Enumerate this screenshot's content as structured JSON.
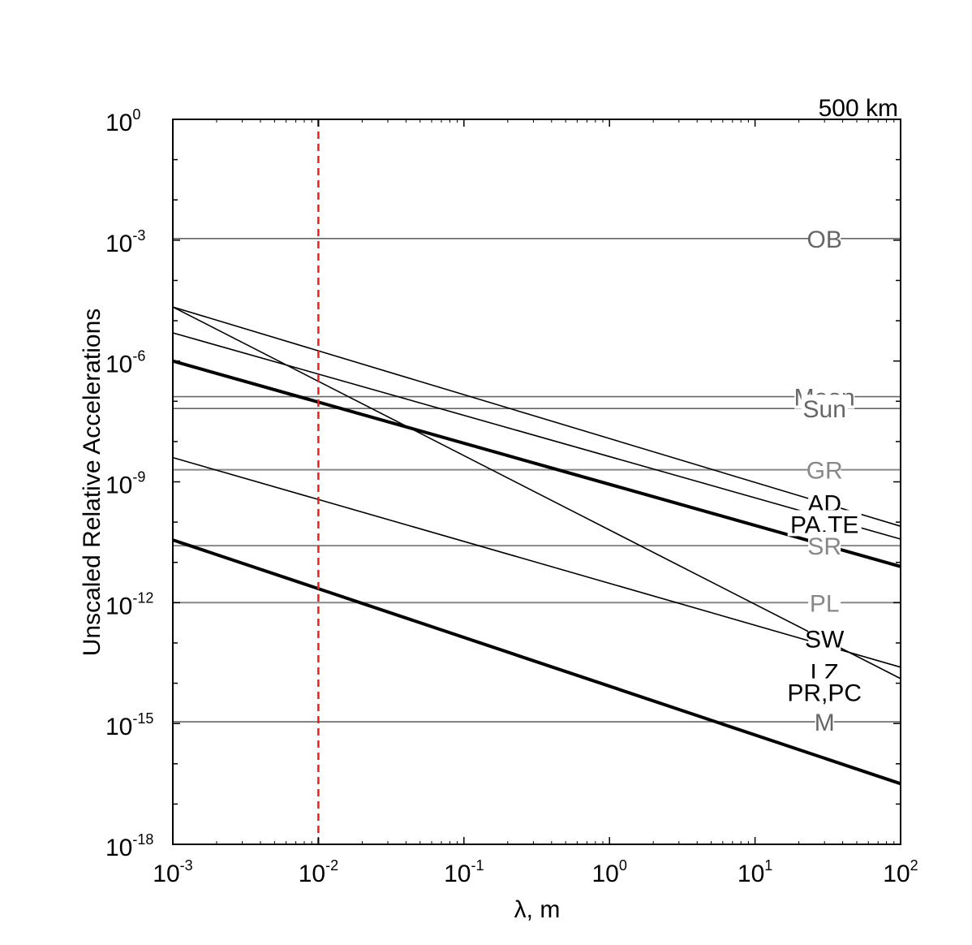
{
  "chart_data": {
    "type": "line",
    "title": "",
    "corner_label": "500 km",
    "xlabel": "λ, m",
    "ylabel": "Unscaled Relative Accelerations",
    "xscale": "log",
    "yscale": "log",
    "xlim": [
      0.001,
      100
    ],
    "ylim": [
      1e-18,
      1
    ],
    "x_ticks": [
      {
        "base": "10",
        "exp": "-3",
        "value": 0.001
      },
      {
        "base": "10",
        "exp": "-2",
        "value": 0.01
      },
      {
        "base": "10",
        "exp": "-1",
        "value": 0.1
      },
      {
        "base": "10",
        "exp": "0",
        "value": 1
      },
      {
        "base": "10",
        "exp": "1",
        "value": 10
      },
      {
        "base": "10",
        "exp": "2",
        "value": 100
      }
    ],
    "y_ticks": [
      {
        "base": "10",
        "exp": "0",
        "value": 1
      },
      {
        "base": "10",
        "exp": "-3",
        "value": 0.001
      },
      {
        "base": "10",
        "exp": "-6",
        "value": 1e-06
      },
      {
        "base": "10",
        "exp": "-9",
        "value": 1e-09
      },
      {
        "base": "10",
        "exp": "-12",
        "value": 1e-12
      },
      {
        "base": "10",
        "exp": "-15",
        "value": 1e-15
      },
      {
        "base": "10",
        "exp": "-18",
        "value": 1e-18
      }
    ],
    "grid": false,
    "legend": "inline labels",
    "marker_line": {
      "x": 0.01,
      "color": "#e8211c",
      "style": "dashed"
    },
    "series": [
      {
        "name": "OB",
        "x": [
          0.001,
          100
        ],
        "y": [
          0.0011,
          0.0011
        ],
        "color": "#666666",
        "width": 1.6,
        "label_color": "#666666"
      },
      {
        "name": "Moon",
        "x": [
          0.001,
          100
        ],
        "y": [
          1.3e-07,
          1.3e-07
        ],
        "color": "#666666",
        "width": 1.6,
        "label_color": "#666666"
      },
      {
        "name": "Sun",
        "x": [
          0.001,
          100
        ],
        "y": [
          6.6e-08,
          6.6e-08
        ],
        "color": "#666666",
        "width": 1.6,
        "label_color": "#666666"
      },
      {
        "name": "GR",
        "x": [
          0.001,
          100
        ],
        "y": [
          2e-09,
          2e-09
        ],
        "color": "#888888",
        "width": 2,
        "label_color": "#888888"
      },
      {
        "name": "SR",
        "x": [
          0.001,
          100
        ],
        "y": [
          2.6e-11,
          2.6e-11
        ],
        "color": "#888888",
        "width": 2,
        "label_color": "#888888"
      },
      {
        "name": "PL",
        "x": [
          0.001,
          100
        ],
        "y": [
          1e-12,
          1e-12
        ],
        "color": "#888888",
        "width": 2,
        "label_color": "#888888"
      },
      {
        "name": "M",
        "x": [
          0.001,
          100
        ],
        "y": [
          1.1e-15,
          1.1e-15
        ],
        "color": "#666666",
        "width": 1.6,
        "label_color": "#666666"
      },
      {
        "name": "AD",
        "x": [
          0.001,
          100
        ],
        "y": [
          2.2e-05,
          7.9e-11
        ],
        "color": "#000000",
        "width": 1.6,
        "label_color": "#000000"
      },
      {
        "name": "SP",
        "x": [
          0.001,
          100
        ],
        "y": [
          5e-06,
          3.8e-11
        ],
        "color": "#000000",
        "width": 1.6,
        "label_color": "#000000"
      },
      {
        "name": "PA,TE",
        "x": [
          0.001,
          100
        ],
        "y": [
          1e-06,
          7.9e-12
        ],
        "color": "#000000",
        "width": 4,
        "label_color": "#000000"
      },
      {
        "name": "LZ",
        "x": [
          0.001,
          100
        ],
        "y": [
          2.2e-05,
          1.3e-14
        ],
        "color": "#000000",
        "width": 1.6,
        "label_color": "#000000"
      },
      {
        "name": "SW",
        "x": [
          0.001,
          100
        ],
        "y": [
          4e-09,
          2.5e-14
        ],
        "color": "#000000",
        "width": 1.6,
        "label_color": "#000000"
      },
      {
        "name": "PR,PC",
        "x": [
          0.001,
          100
        ],
        "y": [
          3.6e-11,
          3.2e-17
        ],
        "color": "#000000",
        "width": 4,
        "label_color": "#000000"
      }
    ],
    "labels": [
      {
        "text": "OB",
        "x": 30,
        "y": 0.0011
      },
      {
        "text": "Moon",
        "x": 30,
        "y": 1.3e-07
      },
      {
        "text": "Sun",
        "x": 30,
        "y": 6.6e-08
      },
      {
        "text": "GR",
        "x": 30,
        "y": 2e-09
      },
      {
        "text": "AD",
        "x": 30,
        "y": 3e-10
      },
      {
        "text": "SP",
        "x": 30,
        "y": 6.5e-11
      },
      {
        "text": "PA,TE",
        "x": 30,
        "y": 9e-11
      },
      {
        "text": "SR",
        "x": 30,
        "y": 2.6e-11
      },
      {
        "text": "PL",
        "x": 30,
        "y": 1e-12
      },
      {
        "text": "SW",
        "x": 30,
        "y": 1.3e-13
      },
      {
        "text": "LZ",
        "x": 30,
        "y": 1.9e-14
      },
      {
        "text": "PR,PC",
        "x": 30,
        "y": 6e-15
      },
      {
        "text": "M",
        "x": 30,
        "y": 1.1e-15
      }
    ]
  }
}
